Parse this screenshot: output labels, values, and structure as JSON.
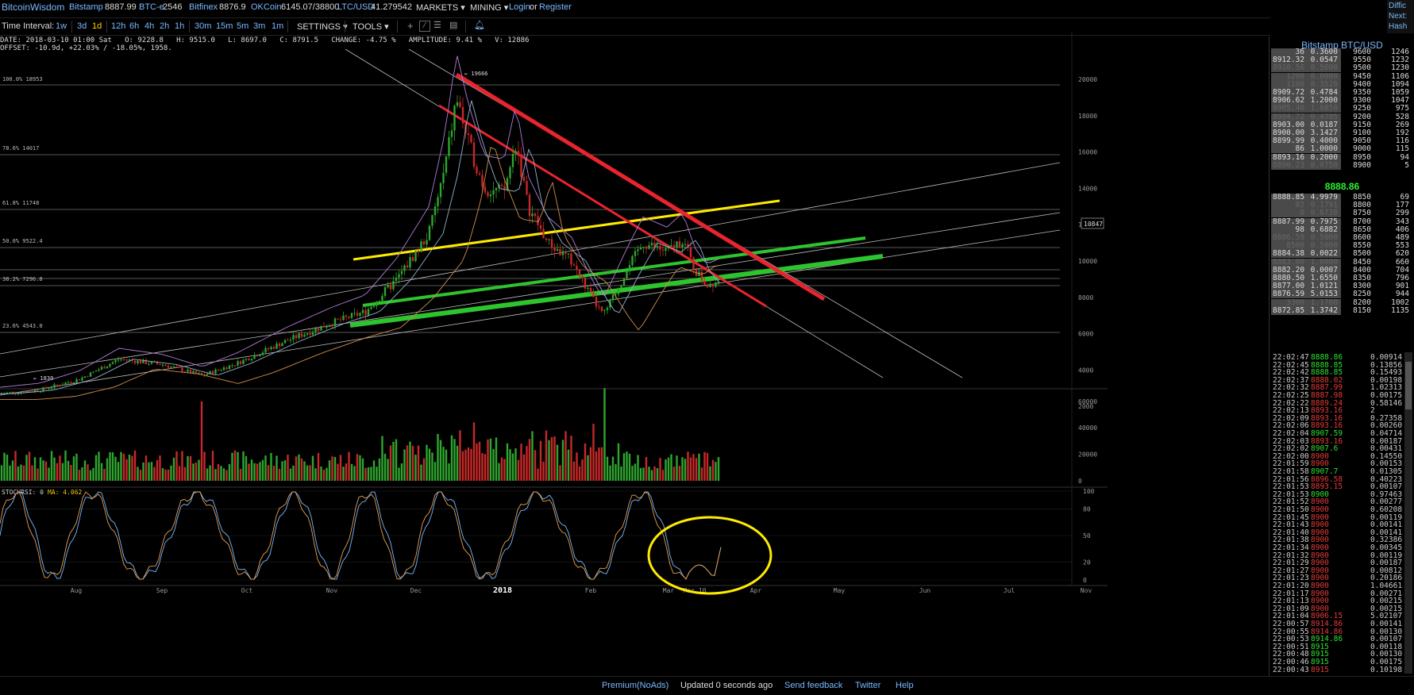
{
  "header": {
    "logo": "BitcoinWisdom",
    "tickers": [
      {
        "exchange": "Bitstamp",
        "price": "8887.99"
      },
      {
        "exchange": "BTC-e",
        "price": "2546"
      },
      {
        "exchange": "Bitfinex",
        "price": "8876.9"
      },
      {
        "exchange": "OKCoin",
        "price": "6145.07/38800"
      },
      {
        "exchange": "LTC/USD",
        "price": "41.279542"
      }
    ],
    "markets_label": "MARKETS",
    "mining_label": "MINING",
    "login_label": "Login",
    "or_label": "or",
    "register_label": "Register",
    "corner": [
      "Diffic",
      "Next:",
      "Hash"
    ]
  },
  "toolbar": {
    "time_interval_label": "Time Interval:",
    "intervals": [
      "1w",
      "3d",
      "1d",
      "12h",
      "6h",
      "4h",
      "2h",
      "1h",
      "30m",
      "15m",
      "5m",
      "3m",
      "1m"
    ],
    "selected_interval": "1d",
    "settings_label": "SETTINGS",
    "tools_label": "TOOLS"
  },
  "info": {
    "line1": "DATE: 2018-03-10 01:00 Sat   O: 9228.8   H: 9515.0   L: 8697.0   C: 8791.5   CHANGE: -4.75 %   AMPLITUDE: 9.41 %   V: 12886",
    "line2": "OFFSET: -10.9d, +22.03% / -18.05%, 1958."
  },
  "chart": {
    "x_labels": [
      "Aug",
      "Sep",
      "Oct",
      "Nov",
      "Dec",
      "2018",
      "Feb",
      "Mar",
      "Mar 10",
      "Apr",
      "May",
      "Jun",
      "Jul",
      "Nov"
    ],
    "price_ticks": [
      "20000",
      "18000",
      "16000",
      "14000",
      "12000",
      "10000",
      "8000",
      "6000",
      "4000",
      "2000"
    ],
    "volume_ticks": [
      "60000",
      "40000",
      "20000",
      "0"
    ],
    "rsi_ticks": [
      "100",
      "80",
      "50",
      "20",
      "0"
    ],
    "fib_labels": [
      "100.0% 18953",
      "78.6% 14017",
      "61.8% 11748",
      "50.0% 9522.4",
      "38.2% 7296.8",
      "23.6% 4543.0"
    ],
    "current_price_tag": "10847",
    "high_label": "19666",
    "low_label": "1830",
    "stochrsi_label": "STOCHRSI: 0",
    "ma_label": "MA: 4.062",
    "colors": {
      "up": "#2fa52f",
      "down": "#c82828",
      "yellow": "#ffea00",
      "green_line": "#2ec42e",
      "red_line": "#e8242e"
    }
  },
  "orderbook": {
    "title": "Bitstamp BTC/USD",
    "asks": [
      [
        "36",
        "0.3600",
        "9600",
        "1246"
      ],
      [
        "8912.32",
        "0.0547",
        "9550",
        "1232"
      ],
      [
        "8910.56",
        "0.5600",
        "9500",
        "1230"
      ],
      [
        "1200",
        "0.0000",
        "9450",
        "1106"
      ],
      [
        "1100",
        "0.3520",
        "9400",
        "1094"
      ],
      [
        "8909.72",
        "0.4784",
        "9350",
        "1059"
      ],
      [
        "8906.62",
        "1.2000",
        "9300",
        "1047"
      ],
      [
        "8905.40",
        "1.6850",
        "9250",
        "975"
      ],
      [
        "8904.72",
        "0.4785",
        "9200",
        "528"
      ],
      [
        "8903.00",
        "0.0187",
        "9150",
        "269"
      ],
      [
        "8900.00",
        "3.1427",
        "9100",
        "192"
      ],
      [
        "8899.99",
        "0.4000",
        "9050",
        "116"
      ],
      [
        "86",
        "1.0000",
        "9000",
        "115"
      ],
      [
        "8893.16",
        "0.2000",
        "8950",
        "94"
      ],
      [
        "8890.23",
        "0.0750",
        "8900",
        "5"
      ]
    ],
    "last_price": "8888.86",
    "bids": [
      [
        "8888.85",
        "4.9979",
        "8850",
        "69"
      ],
      [
        "02",
        "0.1791",
        "8800",
        "177"
      ],
      [
        "0",
        "0.6738",
        "8750",
        "299"
      ],
      [
        "8887.99",
        "0.7975",
        "8700",
        "343"
      ],
      [
        "98",
        "0.6882",
        "8650",
        "406"
      ],
      [
        "8886.59",
        "0.5000",
        "8600",
        "489"
      ],
      [
        "8500",
        "0.5000",
        "8550",
        "553"
      ],
      [
        "8884.38",
        "0.0022",
        "8500",
        "620"
      ],
      [
        "8883.00",
        "1.0000",
        "8450",
        "660"
      ],
      [
        "8882.20",
        "0.0007",
        "8400",
        "704"
      ],
      [
        "8880.50",
        "1.6550",
        "8350",
        "796"
      ],
      [
        "8877.00",
        "1.0121",
        "8300",
        "901"
      ],
      [
        "8876.59",
        "5.0153",
        "8250",
        "944"
      ],
      [
        "3300",
        "1.1780",
        "8200",
        "1002"
      ],
      [
        "8872.85",
        "1.3742",
        "8150",
        "1135"
      ]
    ]
  },
  "trades": [
    [
      "22:02:47",
      "8888.86",
      "0.00914",
      "g"
    ],
    [
      "22:02:45",
      "8888.85",
      "0.13856",
      "g"
    ],
    [
      "22:02:42",
      "8888.85",
      "0.15493",
      "g"
    ],
    [
      "22:02:37",
      "8888.02",
      "0.00198",
      "r"
    ],
    [
      "22:02:32",
      "8887.99",
      "1.02313",
      "r"
    ],
    [
      "22:02:25",
      "8887.98",
      "0.00175",
      "r"
    ],
    [
      "22:02:22",
      "8889.24",
      "0.58146",
      "r"
    ],
    [
      "22:02:13",
      "8893.16",
      "2",
      "r"
    ],
    [
      "22:02:09",
      "8893.16",
      "0.27358",
      "r"
    ],
    [
      "22:02:06",
      "8893.16",
      "0.00260",
      "r"
    ],
    [
      "22:02:04",
      "8907.59",
      "0.04714",
      "g"
    ],
    [
      "22:02:03",
      "8893.16",
      "0.00187",
      "r"
    ],
    [
      "22:02:02",
      "8907.6",
      "0.00431",
      "g"
    ],
    [
      "22:02:00",
      "8900",
      "0.14550",
      "r"
    ],
    [
      "22:01:59",
      "8900",
      "0.00153",
      "r"
    ],
    [
      "22:01:58",
      "8907.7",
      "0.01305",
      "g"
    ],
    [
      "22:01:56",
      "8896.58",
      "0.40223",
      "r"
    ],
    [
      "22:01:53",
      "8893.15",
      "0.00107",
      "r"
    ],
    [
      "22:01:53",
      "8900",
      "0.97463",
      "g"
    ],
    [
      "22:01:52",
      "8900",
      "0.00277",
      "r"
    ],
    [
      "22:01:50",
      "8900",
      "0.60208",
      "r"
    ],
    [
      "22:01:45",
      "8900",
      "0.00119",
      "r"
    ],
    [
      "22:01:43",
      "8900",
      "0.00141",
      "r"
    ],
    [
      "22:01:40",
      "8900",
      "0.00141",
      "r"
    ],
    [
      "22:01:38",
      "8900",
      "0.32386",
      "r"
    ],
    [
      "22:01:34",
      "8900",
      "0.00345",
      "r"
    ],
    [
      "22:01:32",
      "8900",
      "0.00119",
      "r"
    ],
    [
      "22:01:29",
      "8900",
      "0.00187",
      "r"
    ],
    [
      "22:01:27",
      "8900",
      "0.00812",
      "r"
    ],
    [
      "22:01:23",
      "8900",
      "0.20186",
      "r"
    ],
    [
      "22:01:20",
      "8900",
      "1.04661",
      "r"
    ],
    [
      "22:01:17",
      "8900",
      "0.00271",
      "r"
    ],
    [
      "22:01:13",
      "8900",
      "0.00215",
      "r"
    ],
    [
      "22:01:09",
      "8900",
      "0.00215",
      "r"
    ],
    [
      "22:01:04",
      "8906.15",
      "5.02107",
      "r"
    ],
    [
      "22:00:57",
      "8914.86",
      "0.00141",
      "r"
    ],
    [
      "22:00:55",
      "8914.86",
      "0.00130",
      "r"
    ],
    [
      "22:00:53",
      "8914.86",
      "0.00107",
      "g"
    ],
    [
      "22:00:51",
      "8915",
      "0.00118",
      "g"
    ],
    [
      "22:00:48",
      "8915",
      "0.00130",
      "g"
    ],
    [
      "22:00:46",
      "8915",
      "0.00175",
      "g"
    ],
    [
      "22:00:43",
      "8915",
      "0.10198",
      "r"
    ]
  ],
  "footer": {
    "premium": "Premium(NoAds)",
    "updated": "Updated 0 seconds ago",
    "feedback": "Send feedback",
    "twitter": "Twitter",
    "help": "Help"
  }
}
